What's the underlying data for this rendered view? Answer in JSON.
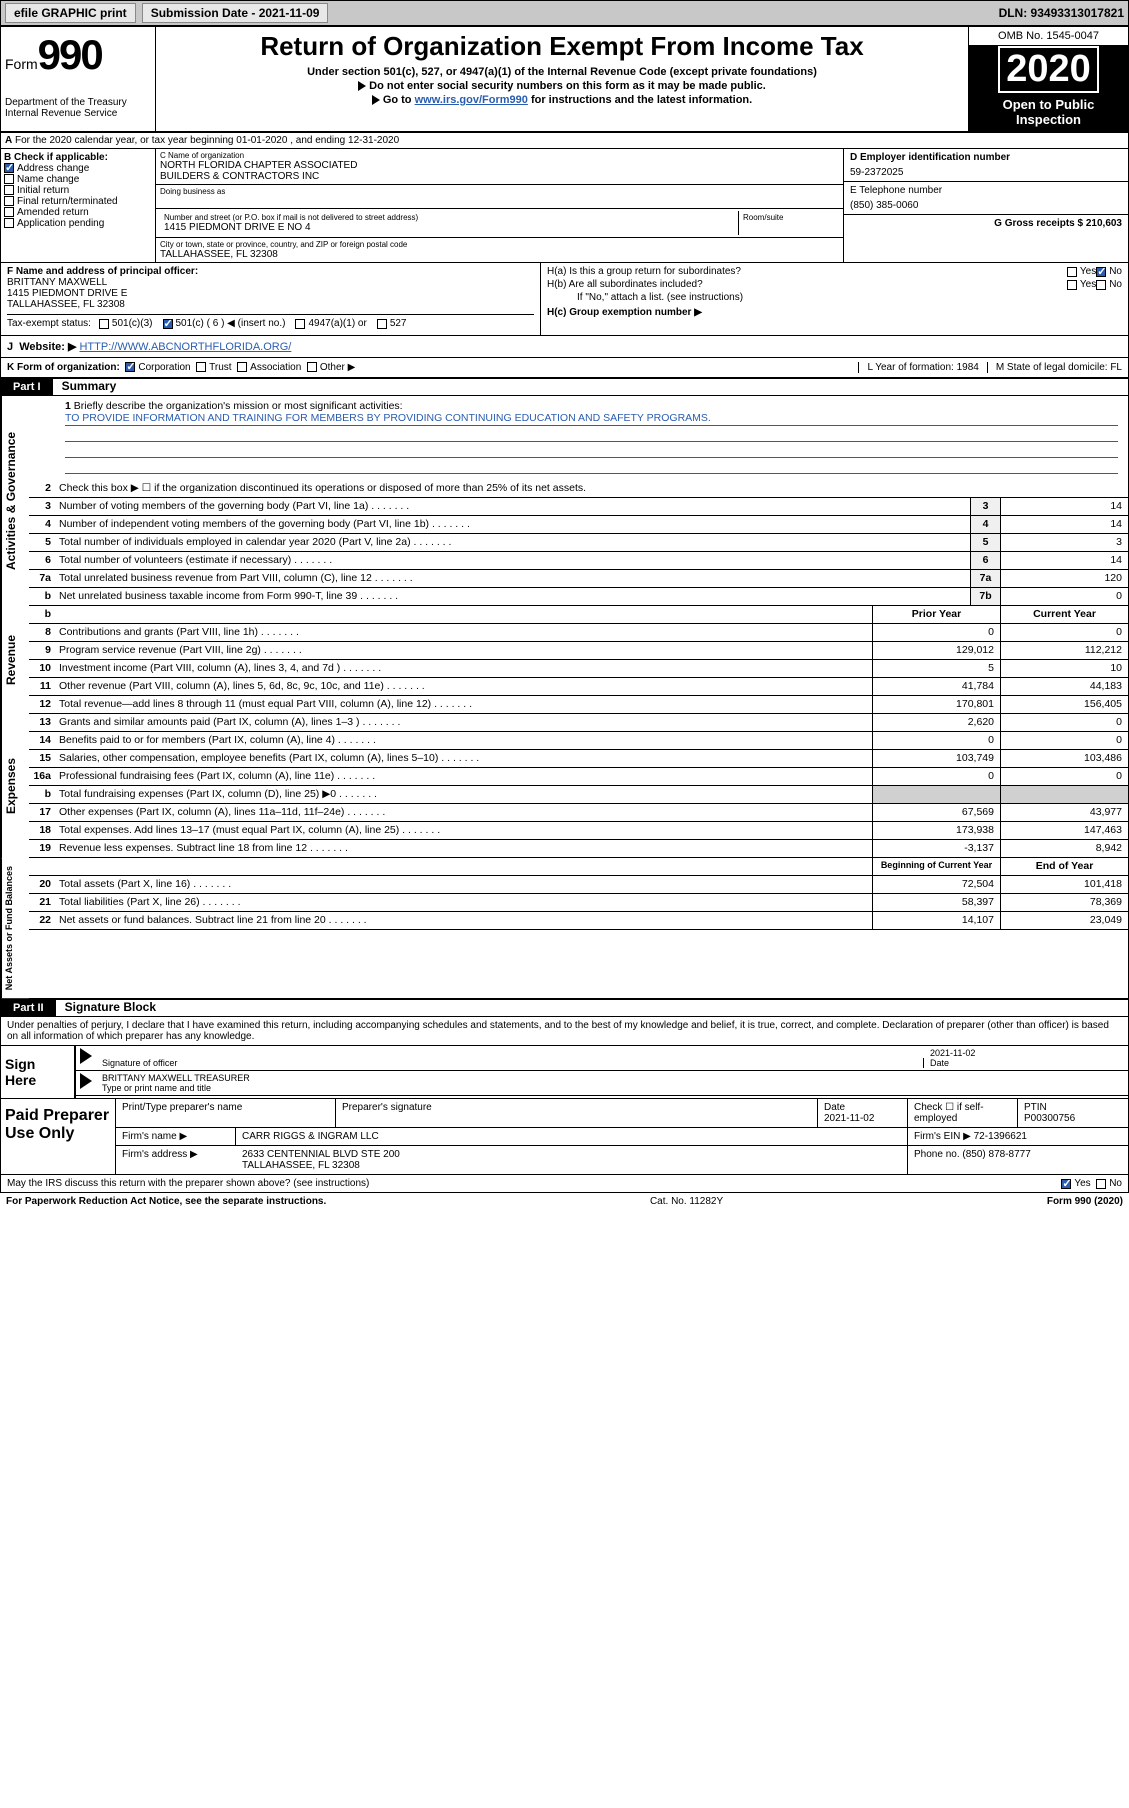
{
  "topbar": {
    "efile": "efile GRAPHIC print",
    "submission_label": "Submission Date - 2021-11-09",
    "dln": "DLN: 93493313017821"
  },
  "header": {
    "form_label": "Form",
    "form_num": "990",
    "dept": "Department of the Treasury\nInternal Revenue Service",
    "title": "Return of Organization Exempt From Income Tax",
    "sub1": "Under section 501(c), 527, or 4947(a)(1) of the Internal Revenue Code (except private foundations)",
    "sub2": "Do not enter social security numbers on this form as it may be made public.",
    "sub3_pre": "Go to ",
    "sub3_link": "www.irs.gov/Form990",
    "sub3_post": " for instructions and the latest information.",
    "omb": "OMB No. 1545-0047",
    "year": "2020",
    "otp": "Open to Public Inspection"
  },
  "row_a": {
    "text": "For the 2020 calendar year, or tax year beginning 01-01-2020    , and ending 12-31-2020"
  },
  "col_b": {
    "label": "B Check if applicable:",
    "items": [
      "Address change",
      "Name change",
      "Initial return",
      "Final return/terminated",
      "Amended return",
      "Application pending"
    ],
    "checked": [
      true,
      false,
      false,
      false,
      false,
      false
    ]
  },
  "col_c": {
    "name_label": "C Name of organization",
    "name": "NORTH FLORIDA CHAPTER ASSOCIATED\nBUILDERS & CONTRACTORS INC",
    "dba_label": "Doing business as",
    "addr_label": "Number and street (or P.O. box if mail is not delivered to street address)",
    "addr": "1415 PIEDMONT DRIVE E NO 4",
    "room_label": "Room/suite",
    "city_label": "City or town, state or province, country, and ZIP or foreign postal code",
    "city": "TALLAHASSEE, FL  32308"
  },
  "col_d": {
    "ein_label": "D Employer identification number",
    "ein": "59-2372025",
    "tel_label": "E Telephone number",
    "tel": "(850) 385-0060",
    "gross_label": "G Gross receipts $ 210,603"
  },
  "col_f": {
    "label": "F  Name and address of principal officer:",
    "name": "BRITTANY MAXWELL",
    "addr1": "1415 PIEDMONT DRIVE E",
    "addr2": "TALLAHASSEE, FL  32308"
  },
  "col_h": {
    "ha": "H(a)  Is this a group return for subordinates?",
    "hb": "H(b)  Are all subordinates included?",
    "hb_note": "If \"No,\" attach a list. (see instructions)",
    "hc": "H(c)  Group exemption number ▶",
    "ha_answer": "No"
  },
  "tax_row": {
    "label": "Tax-exempt status:",
    "opts": [
      "501(c)(3)",
      "501(c) ( 6 ) ◀ (insert no.)",
      "4947(a)(1) or",
      "527"
    ],
    "checked": [
      false,
      true,
      false,
      false
    ]
  },
  "j": {
    "label": "J",
    "text": "Website: ▶",
    "url": "HTTP://WWW.ABCNORTHFLORIDA.ORG/"
  },
  "k": {
    "label": "K Form of organization:",
    "opts": [
      "Corporation",
      "Trust",
      "Association",
      "Other ▶"
    ],
    "checked": [
      true,
      false,
      false,
      false
    ],
    "l": "L Year of formation: 1984",
    "m": "M State of legal domicile: FL"
  },
  "part1": {
    "hdr": "Part I",
    "title": "Summary"
  },
  "mission": {
    "num": "1",
    "label": "Briefly describe the organization's mission or most significant activities:",
    "text": "TO PROVIDE INFORMATION AND TRAINING FOR MEMBERS BY PROVIDING CONTINUING EDUCATION AND SAFETY PROGRAMS."
  },
  "line2": {
    "num": "2",
    "txt": "Check this box ▶ ☐  if the organization discontinued its operations or disposed of more than 25% of its net assets."
  },
  "gov_lines": [
    {
      "num": "3",
      "txt": "Number of voting members of the governing body (Part VI, line 1a)",
      "box": "3",
      "val": "14"
    },
    {
      "num": "4",
      "txt": "Number of independent voting members of the governing body (Part VI, line 1b)",
      "box": "4",
      "val": "14"
    },
    {
      "num": "5",
      "txt": "Total number of individuals employed in calendar year 2020 (Part V, line 2a)",
      "box": "5",
      "val": "3"
    },
    {
      "num": "6",
      "txt": "Total number of volunteers (estimate if necessary)",
      "box": "6",
      "val": "14"
    },
    {
      "num": "7a",
      "txt": "Total unrelated business revenue from Part VIII, column (C), line 12",
      "box": "7a",
      "val": "120"
    },
    {
      "num": "b",
      "txt": "Net unrelated business taxable income from Form 990-T, line 39",
      "box": "7b",
      "val": "0"
    }
  ],
  "rev_hdr": {
    "prior": "Prior Year",
    "current": "Current Year"
  },
  "rev_lines": [
    {
      "num": "8",
      "txt": "Contributions and grants (Part VIII, line 1h)",
      "prior": "0",
      "current": "0"
    },
    {
      "num": "9",
      "txt": "Program service revenue (Part VIII, line 2g)",
      "prior": "129,012",
      "current": "112,212"
    },
    {
      "num": "10",
      "txt": "Investment income (Part VIII, column (A), lines 3, 4, and 7d )",
      "prior": "5",
      "current": "10"
    },
    {
      "num": "11",
      "txt": "Other revenue (Part VIII, column (A), lines 5, 6d, 8c, 9c, 10c, and 11e)",
      "prior": "41,784",
      "current": "44,183"
    },
    {
      "num": "12",
      "txt": "Total revenue—add lines 8 through 11 (must equal Part VIII, column (A), line 12)",
      "prior": "170,801",
      "current": "156,405"
    }
  ],
  "exp_lines": [
    {
      "num": "13",
      "txt": "Grants and similar amounts paid (Part IX, column (A), lines 1–3 )",
      "prior": "2,620",
      "current": "0"
    },
    {
      "num": "14",
      "txt": "Benefits paid to or for members (Part IX, column (A), line 4)",
      "prior": "0",
      "current": "0"
    },
    {
      "num": "15",
      "txt": "Salaries, other compensation, employee benefits (Part IX, column (A), lines 5–10)",
      "prior": "103,749",
      "current": "103,486"
    },
    {
      "num": "16a",
      "txt": "Professional fundraising fees (Part IX, column (A), line 11e)",
      "prior": "0",
      "current": "0"
    },
    {
      "num": "b",
      "txt": "Total fundraising expenses (Part IX, column (D), line 25) ▶0",
      "prior": "",
      "current": "",
      "shade": true
    },
    {
      "num": "17",
      "txt": "Other expenses (Part IX, column (A), lines 11a–11d, 11f–24e)",
      "prior": "67,569",
      "current": "43,977"
    },
    {
      "num": "18",
      "txt": "Total expenses. Add lines 13–17 (must equal Part IX, column (A), line 25)",
      "prior": "173,938",
      "current": "147,463"
    },
    {
      "num": "19",
      "txt": "Revenue less expenses. Subtract line 18 from line 12",
      "prior": "-3,137",
      "current": "8,942"
    }
  ],
  "na_hdr": {
    "prior": "Beginning of Current Year",
    "current": "End of Year"
  },
  "na_lines": [
    {
      "num": "20",
      "txt": "Total assets (Part X, line 16)",
      "prior": "72,504",
      "current": "101,418"
    },
    {
      "num": "21",
      "txt": "Total liabilities (Part X, line 26)",
      "prior": "58,397",
      "current": "78,369"
    },
    {
      "num": "22",
      "txt": "Net assets or fund balances. Subtract line 21 from line 20",
      "prior": "14,107",
      "current": "23,049"
    }
  ],
  "sides": {
    "gov": "Activities & Governance",
    "rev": "Revenue",
    "exp": "Expenses",
    "na": "Net Assets or Fund Balances"
  },
  "part2": {
    "hdr": "Part II",
    "title": "Signature Block"
  },
  "sig_decl": "Under penalties of perjury, I declare that I have examined this return, including accompanying schedules and statements, and to the best of my knowledge and belief, it is true, correct, and complete. Declaration of preparer (other than officer) is based on all information of which preparer has any knowledge.",
  "sign": {
    "label": "Sign Here",
    "sig_of": "Signature of officer",
    "date": "2021-11-02",
    "date_lbl": "Date",
    "name": "BRITTANY MAXWELL  TREASURER",
    "name_lbl": "Type or print name and title"
  },
  "prep": {
    "label": "Paid Preparer Use Only",
    "h1": "Print/Type preparer's name",
    "h2": "Preparer's signature",
    "h3": "Date",
    "h3v": "2021-11-02",
    "h4": "Check ☐ if self-employed",
    "h5": "PTIN",
    "h5v": "P00300756",
    "firm_lbl": "Firm's name      ▶",
    "firm": "CARR RIGGS & INGRAM LLC",
    "ein_lbl": "Firm's EIN ▶",
    "ein": "72-1396621",
    "addr_lbl": "Firm's address ▶",
    "addr": "2633 CENTENNIAL BLVD STE 200",
    "addr2": "TALLAHASSEE, FL  32308",
    "phone_lbl": "Phone no.",
    "phone": "(850) 878-8777"
  },
  "footer": {
    "discuss": "May the IRS discuss this return with the preparer shown above? (see instructions)",
    "yes": "Yes",
    "no": "No",
    "paperwork": "For Paperwork Reduction Act Notice, see the separate instructions.",
    "cat": "Cat. No. 11282Y",
    "form": "Form 990 (2020)"
  },
  "colors": {
    "link": "#2a5db0",
    "shade": "#d0d0d0"
  }
}
